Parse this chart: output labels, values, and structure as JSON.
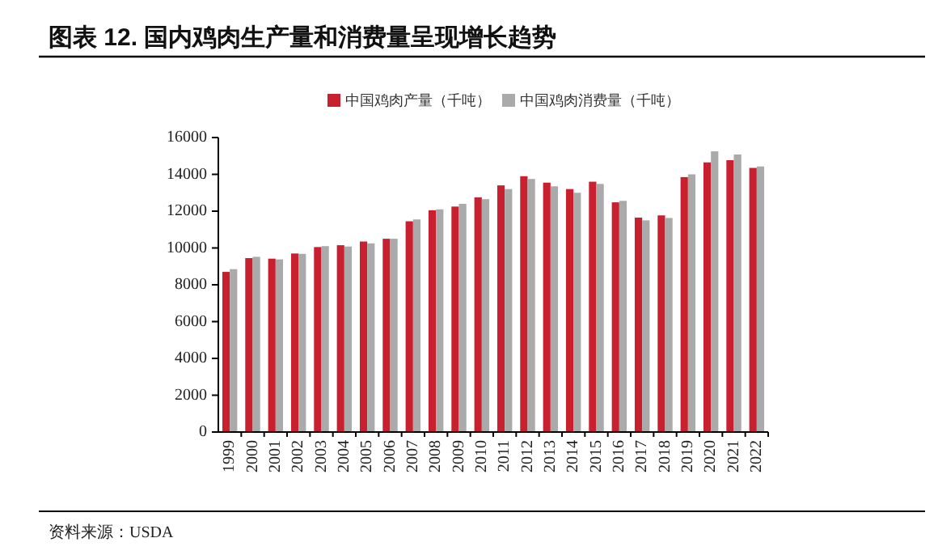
{
  "chart_data": {
    "type": "bar",
    "title": "图表 12. 国内鸡肉生产量和消费量呈现增长趋势",
    "categories": [
      "1999",
      "2000",
      "2001",
      "2002",
      "2003",
      "2004",
      "2005",
      "2006",
      "2007",
      "2008",
      "2009",
      "2010",
      "2011",
      "2012",
      "2013",
      "2014",
      "2015",
      "2016",
      "2017",
      "2018",
      "2019",
      "2020",
      "2021",
      "2022"
    ],
    "series": [
      {
        "name": "中国鸡肉产量（千吨）",
        "color": "#c8202e",
        "values": [
          8700,
          9450,
          9420,
          9700,
          10050,
          10150,
          10350,
          10500,
          11450,
          12050,
          12250,
          12750,
          13400,
          13900,
          13550,
          13200,
          13600,
          12480,
          11650,
          11770,
          13850,
          14650,
          14770,
          14350
        ]
      },
      {
        "name": "中国鸡肉消费量（千吨）",
        "color": "#aaaaaa",
        "values": [
          8850,
          9520,
          9380,
          9680,
          10100,
          10080,
          10250,
          10500,
          11550,
          12100,
          12400,
          12650,
          13200,
          13750,
          13350,
          13000,
          13480,
          12560,
          11500,
          11630,
          14000,
          15250,
          15080,
          14430
        ]
      }
    ],
    "ylim": [
      0,
      16000
    ],
    "yticks": [
      0,
      2000,
      4000,
      6000,
      8000,
      10000,
      12000,
      14000,
      16000
    ],
    "legend": "top",
    "annotations": [
      "资料来源：USDA"
    ]
  }
}
